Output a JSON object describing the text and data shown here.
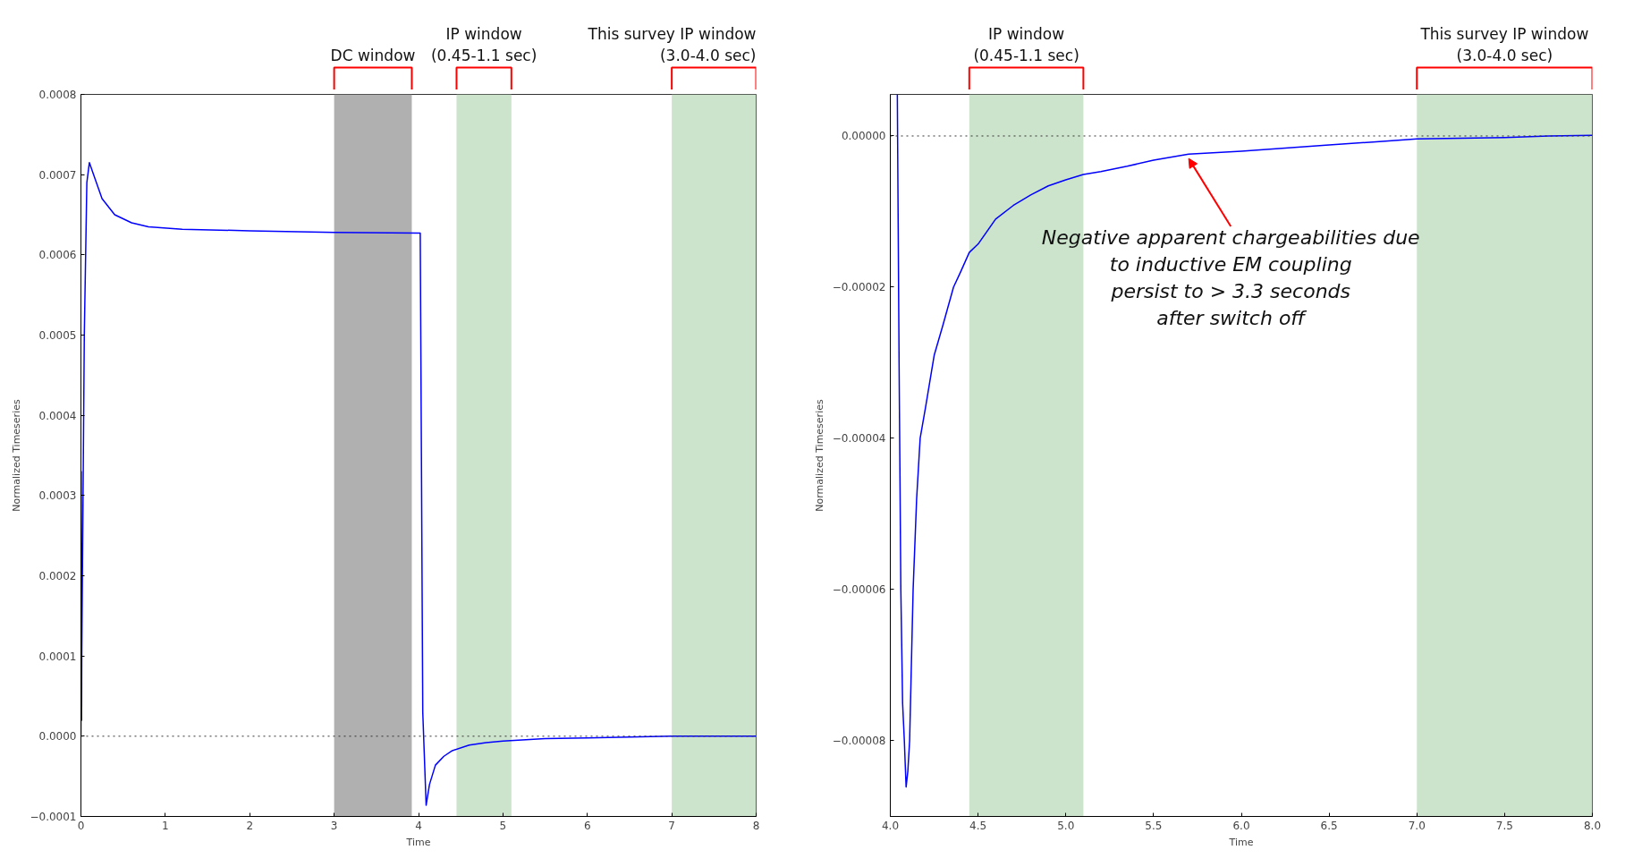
{
  "chart_data": [
    {
      "type": "line",
      "xlabel": "Time",
      "ylabel": "Normalized Timeseries",
      "xlim": [
        0,
        8
      ],
      "ylim": [
        -0.0001,
        0.0008
      ],
      "xticks": [
        0,
        1,
        2,
        3,
        4,
        5,
        6,
        7,
        8
      ],
      "yticks": [
        {
          "value": -0.0001,
          "label": "−0.0001"
        },
        {
          "value": 0,
          "label": "0.0000"
        },
        {
          "value": 0.0001,
          "label": "0.0001"
        },
        {
          "value": 0.0002,
          "label": "0.0002"
        },
        {
          "value": 0.0003,
          "label": "0.0003"
        },
        {
          "value": 0.0004,
          "label": "0.0004"
        },
        {
          "value": 0.0005,
          "label": "0.0005"
        },
        {
          "value": 0.0006,
          "label": "0.0006"
        },
        {
          "value": 0.0007,
          "label": "0.0007"
        },
        {
          "value": 0.0008,
          "label": "0.0008"
        }
      ],
      "series": [
        {
          "color": "#0000ff",
          "x": [
            0,
            0.003,
            0.008,
            0.01,
            0.04,
            0.07,
            0.1,
            0.15,
            0.25,
            0.4,
            0.6,
            0.8,
            1.2,
            2,
            3,
            4.0,
            4.02,
            4.05,
            4.09,
            4.13,
            4.2,
            4.3,
            4.4,
            4.6,
            4.8,
            5.0,
            5.5,
            6.0,
            6.5,
            7.0,
            7.5,
            8.0
          ],
          "values": [
            0,
            0.00033,
            2e-05,
            0.0001,
            0.0005,
            0.00069,
            0.000715,
            0.0007,
            0.00067,
            0.00065,
            0.00064,
            0.000635,
            0.000632,
            0.00063,
            0.000628,
            0.000627,
            0.000627,
            3e-05,
            -8.6e-05,
            -6e-05,
            -3.6e-05,
            -2.5e-05,
            -1.8e-05,
            -1.1e-05,
            -8e-06,
            -6e-06,
            -3e-06,
            -2e-06,
            -1e-06,
            0,
            0,
            0
          ]
        }
      ],
      "bands": [
        {
          "axis": "x",
          "from": 3.0,
          "to": 3.92,
          "label": "DC window",
          "color": "#b0b0b0"
        },
        {
          "axis": "x",
          "from": 4.45,
          "to": 5.1,
          "label": "IP window\n(0.45-1.1 sec)",
          "color": "#cce3cc"
        },
        {
          "axis": "x",
          "from": 7.0,
          "to": 8.0,
          "label": "This survey IP window\n(3.0-4.0 sec)",
          "color": "#cce3cc"
        }
      ],
      "ref_lines": [
        {
          "axis": "y",
          "value": 0,
          "line_style": "dotted",
          "color": "#333333"
        }
      ]
    },
    {
      "type": "line",
      "xlabel": "Time",
      "ylabel": "Normalized Timeseries",
      "xlim": [
        4.0,
        8.0
      ],
      "ylim": [
        -9e-05,
        5.5e-06
      ],
      "xticks": [
        {
          "value": 4.0,
          "label": "4.0"
        },
        {
          "value": 4.5,
          "label": "4.5"
        },
        {
          "value": 5.0,
          "label": "5.0"
        },
        {
          "value": 5.5,
          "label": "5.5"
        },
        {
          "value": 6.0,
          "label": "6.0"
        },
        {
          "value": 6.5,
          "label": "6.5"
        },
        {
          "value": 7.0,
          "label": "7.0"
        },
        {
          "value": 7.5,
          "label": "7.5"
        },
        {
          "value": 8.0,
          "label": "8.0"
        }
      ],
      "yticks": [
        {
          "value": -8e-05,
          "label": "−0.00008"
        },
        {
          "value": -6e-05,
          "label": "−0.00006"
        },
        {
          "value": -4e-05,
          "label": "−0.00004"
        },
        {
          "value": -2e-05,
          "label": "−0.00002"
        },
        {
          "value": 0,
          "label": "0.00000"
        }
      ],
      "series": [
        {
          "color": "#0000ff",
          "x": [
            4.04,
            4.05,
            4.06,
            4.07,
            4.08,
            4.09,
            4.1,
            4.11,
            4.13,
            4.15,
            4.17,
            4.2,
            4.25,
            4.3,
            4.36,
            4.4,
            4.45,
            4.5,
            4.6,
            4.7,
            4.8,
            4.9,
            5.0,
            5.1,
            5.2,
            5.35,
            5.5,
            5.7,
            6.0,
            6.25,
            6.5,
            6.75,
            7.0,
            7.25,
            7.5,
            7.75,
            8.0
          ],
          "values": [
            5.5e-06,
            -3e-05,
            -6e-05,
            -7.5e-05,
            -8e-05,
            -8.61e-05,
            -8.4e-05,
            -8e-05,
            -6e-05,
            -4.8e-05,
            -4e-05,
            -3.6e-05,
            -2.9e-05,
            -2.5e-05,
            -2e-05,
            -1.8e-05,
            -1.54e-05,
            -1.43e-05,
            -1.1e-05,
            -9.2e-06,
            -7.8e-06,
            -6.6e-06,
            -5.8e-06,
            -5.1e-06,
            -4.7e-06,
            -4e-06,
            -3.2e-06,
            -2.4e-06,
            -2e-06,
            -1.6e-06,
            -1.2e-06,
            -8e-07,
            -4e-07,
            -3e-07,
            -2e-07,
            0,
            1e-07
          ]
        }
      ],
      "bands": [
        {
          "axis": "x",
          "from": 4.45,
          "to": 5.1,
          "label": "IP window\n(0.45-1.1 sec)",
          "color": "#cce3cc"
        },
        {
          "axis": "x",
          "from": 7.0,
          "to": 8.0,
          "label": "This survey IP window\n(3.0-4.0 sec)",
          "color": "#cce3cc"
        }
      ],
      "ref_lines": [
        {
          "axis": "y",
          "value": 0,
          "line_style": "dotted",
          "color": "#333333"
        }
      ],
      "annotations": [
        {
          "text": "Negative apparent chargeabilities due\nto inductive EM coupling\npersist to > 3.3 seconds\nafter switch off",
          "x": 5.7,
          "y": -2.4e-06
        }
      ]
    }
  ]
}
